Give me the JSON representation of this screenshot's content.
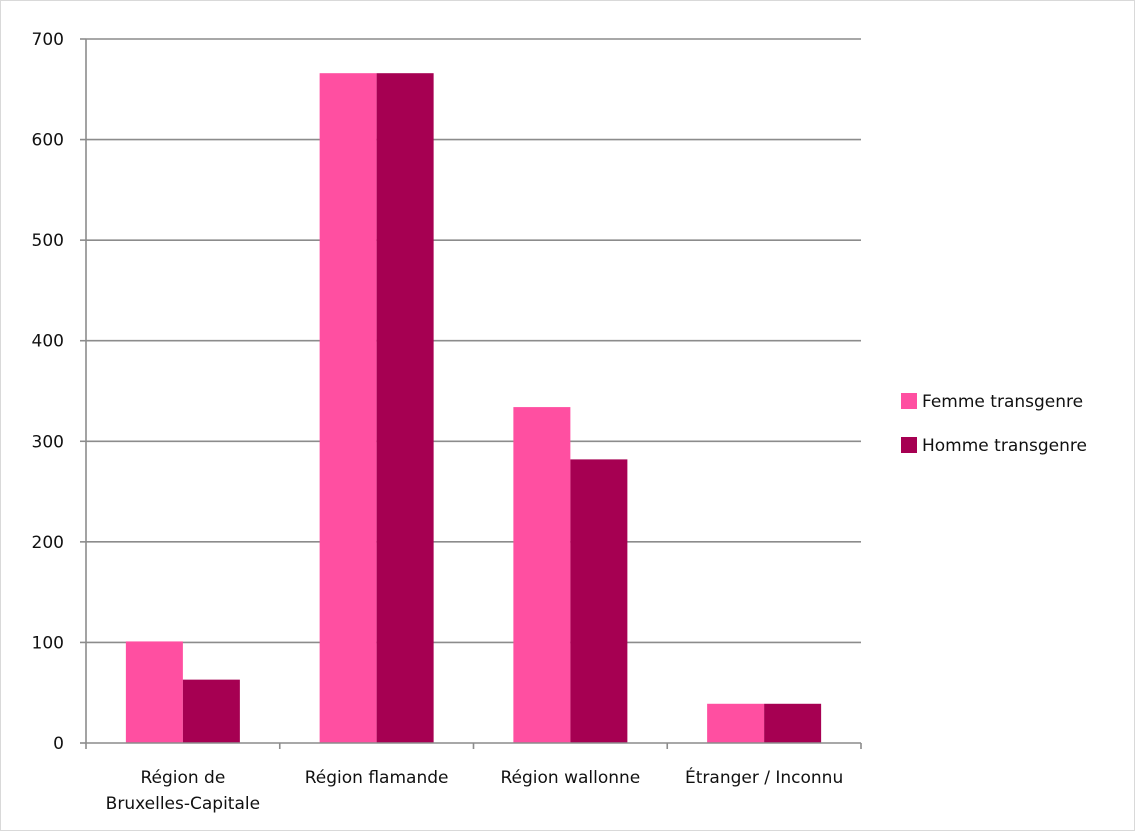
{
  "chart_data": {
    "type": "bar",
    "title": "",
    "xlabel": "",
    "ylabel": "",
    "categories": [
      [
        "Région de",
        "Bruxelles-Capitale"
      ],
      [
        "Région flamande"
      ],
      [
        "Région wallonne"
      ],
      [
        "Étranger / Inconnu"
      ]
    ],
    "series": [
      {
        "name": "Femme transgenre",
        "color": "#ff4fa1",
        "values": [
          101,
          666,
          334,
          39
        ]
      },
      {
        "name": "Homme transgenre",
        "color": "#a60052",
        "values": [
          63,
          666,
          282,
          39
        ]
      }
    ],
    "ylim": [
      0,
      700
    ],
    "yticks": [
      0,
      100,
      200,
      300,
      400,
      500,
      600,
      700
    ],
    "grid": true,
    "legend_position": "right"
  }
}
